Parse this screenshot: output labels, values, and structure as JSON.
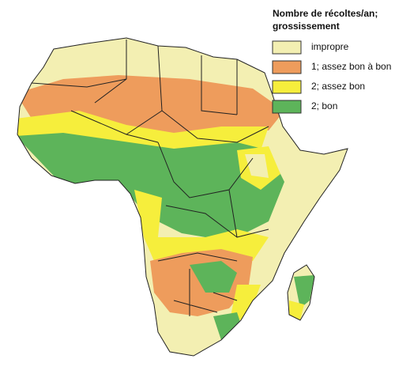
{
  "legend": {
    "title": [
      "Nombre de récoltes/an;",
      "grossissement"
    ],
    "items": [
      {
        "label": "impropre",
        "color": "#f3efb2"
      },
      {
        "label": "1; assez bon à bon",
        "color": "#ee9c5c"
      },
      {
        "label": "2; assez bon",
        "color": "#f6ee3c"
      },
      {
        "label": "2; bon",
        "color": "#5db45a"
      }
    ]
  }
}
